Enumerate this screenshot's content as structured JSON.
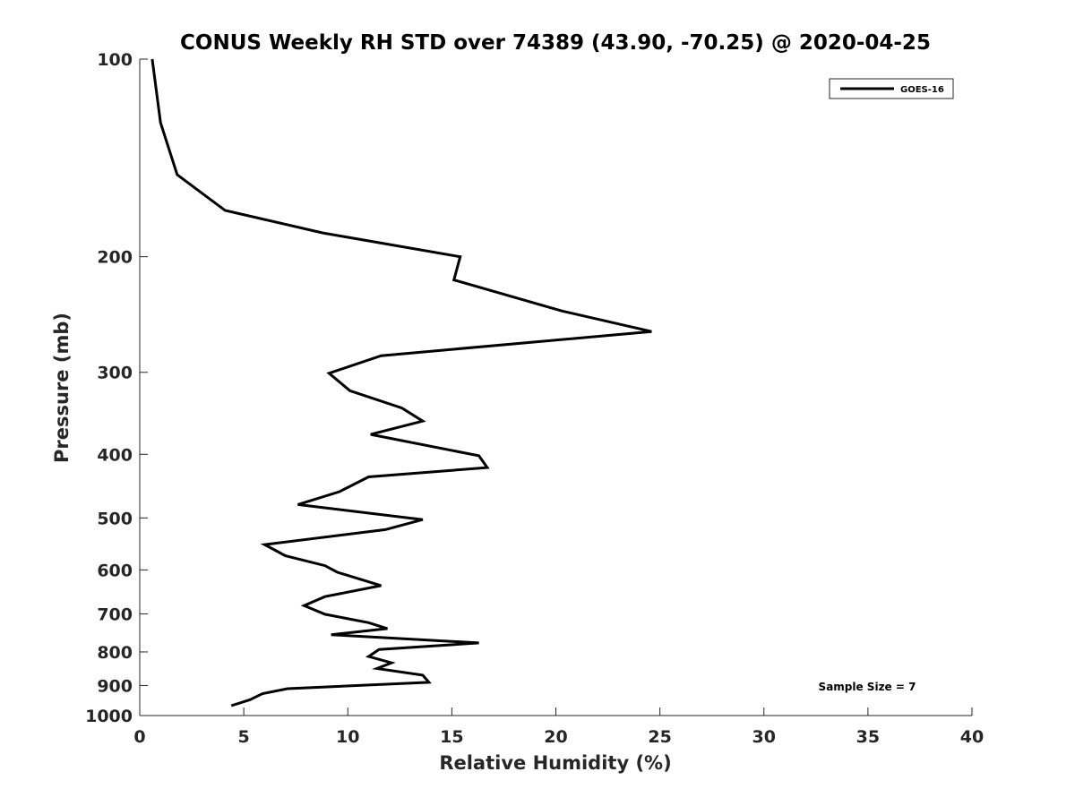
{
  "chart_data": {
    "type": "line",
    "title": "CONUS Weekly RH STD over 74389 (43.90, -70.25) @ 2020-04-25",
    "xlabel": "Relative Humidity (%)",
    "ylabel": "Pressure (mb)",
    "xlim": [
      0,
      40
    ],
    "ylim": [
      100,
      1000
    ],
    "y_scale": "log",
    "y_reversed": true,
    "x_ticks": [
      0,
      5,
      10,
      15,
      20,
      25,
      30,
      35,
      40
    ],
    "y_ticks": [
      100,
      200,
      300,
      400,
      500,
      600,
      700,
      800,
      900,
      1000
    ],
    "grid": false,
    "legend_position": "top-right",
    "annotation": "Sample Size = 7",
    "series": [
      {
        "name": "GOES-16",
        "color": "#000000",
        "points": [
          [
            0.6,
            100
          ],
          [
            1.0,
            125
          ],
          [
            1.8,
            150
          ],
          [
            4.1,
            170
          ],
          [
            8.8,
            184
          ],
          [
            15.4,
            200
          ],
          [
            15.1,
            217
          ],
          [
            20.3,
            242
          ],
          [
            24.6,
            260
          ],
          [
            11.6,
            283
          ],
          [
            9.1,
            301
          ],
          [
            10.1,
            320
          ],
          [
            12.6,
            340
          ],
          [
            13.6,
            356
          ],
          [
            11.1,
            373
          ],
          [
            16.3,
            402
          ],
          [
            16.7,
            419
          ],
          [
            11.0,
            433
          ],
          [
            9.6,
            456
          ],
          [
            7.6,
            477
          ],
          [
            13.6,
            503
          ],
          [
            11.8,
            521
          ],
          [
            6.0,
            549
          ],
          [
            7.0,
            571
          ],
          [
            8.9,
            591
          ],
          [
            9.5,
            605
          ],
          [
            11.6,
            634
          ],
          [
            8.9,
            659
          ],
          [
            7.9,
            680
          ],
          [
            8.9,
            701
          ],
          [
            11.0,
            722
          ],
          [
            11.9,
            737
          ],
          [
            9.2,
            753
          ],
          [
            16.3,
            775
          ],
          [
            11.5,
            793
          ],
          [
            11.0,
            813
          ],
          [
            12.1,
            831
          ],
          [
            11.4,
            848
          ],
          [
            13.6,
            868
          ],
          [
            13.9,
            890
          ],
          [
            7.1,
            910
          ],
          [
            5.9,
            926
          ],
          [
            5.3,
            946
          ],
          [
            4.4,
            966
          ]
        ]
      }
    ]
  }
}
